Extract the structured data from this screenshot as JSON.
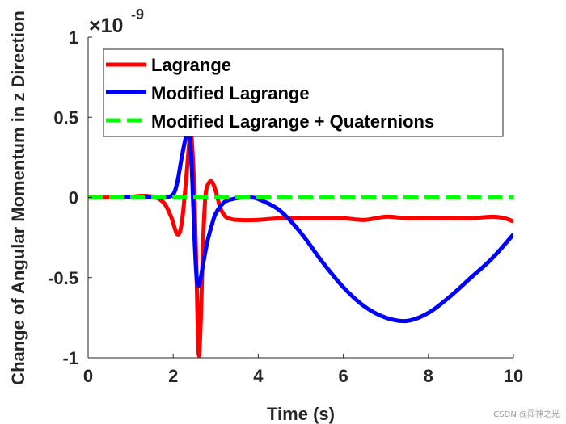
{
  "chart_data": {
    "type": "line",
    "title": "",
    "xlabel": "Time (s)",
    "ylabel": "Change of Angular Momentum in z Direction",
    "exponent_base": "×10",
    "exponent_power": "-9",
    "xlim": [
      0,
      10
    ],
    "ylim": [
      -1,
      1
    ],
    "xticks": [
      0,
      2,
      4,
      6,
      8,
      10
    ],
    "xtick_labels": [
      "0",
      "2",
      "4",
      "6",
      "8",
      "10"
    ],
    "yticks": [
      -1,
      -0.5,
      0,
      0.5,
      1
    ],
    "ytick_labels": [
      "-1",
      "-0.5",
      "0",
      "0.5",
      "1"
    ],
    "grid": false,
    "legend_position": "top",
    "series": [
      {
        "name": "Lagrange",
        "color": "#ff0000",
        "style": "solid",
        "x": [
          0,
          0.5,
          1.0,
          1.3,
          1.6,
          1.8,
          1.95,
          2.1,
          2.2,
          2.3,
          2.4,
          2.45,
          2.5,
          2.55,
          2.6,
          2.65,
          2.7,
          2.75,
          2.8,
          2.9,
          3.0,
          3.1,
          3.2,
          3.3,
          3.5,
          4.0,
          4.5,
          5.0,
          5.5,
          6.0,
          6.5,
          7.0,
          7.5,
          8.0,
          8.5,
          9.0,
          9.5,
          9.8,
          10.0
        ],
        "y": [
          0,
          0,
          0.005,
          0.01,
          0.0,
          -0.04,
          -0.12,
          -0.23,
          -0.16,
          0.1,
          0.4,
          0.3,
          0.0,
          -0.5,
          -0.98,
          -0.75,
          -0.3,
          -0.02,
          0.07,
          0.1,
          0.04,
          -0.06,
          -0.11,
          -0.13,
          -0.14,
          -0.14,
          -0.13,
          -0.13,
          -0.13,
          -0.13,
          -0.14,
          -0.12,
          -0.13,
          -0.13,
          -0.13,
          -0.13,
          -0.12,
          -0.13,
          -0.15
        ]
      },
      {
        "name": "Modified Lagrange",
        "color": "#0000ff",
        "style": "solid",
        "x": [
          0.5,
          1.0,
          1.5,
          1.8,
          2.0,
          2.1,
          2.2,
          2.3,
          2.35,
          2.4,
          2.45,
          2.5,
          2.55,
          2.6,
          2.65,
          2.7,
          2.8,
          2.9,
          3.0,
          3.2,
          3.4,
          3.6,
          3.8,
          4.0,
          4.5,
          5.0,
          5.5,
          6.0,
          6.5,
          7.0,
          7.5,
          8.0,
          8.5,
          9.0,
          9.5,
          10.0
        ],
        "y": [
          0,
          0,
          0,
          0.0,
          0.02,
          0.1,
          0.25,
          0.38,
          0.4,
          0.35,
          0.1,
          -0.25,
          -0.5,
          -0.55,
          -0.5,
          -0.42,
          -0.28,
          -0.18,
          -0.1,
          -0.03,
          -0.01,
          0.0,
          0.0,
          -0.01,
          -0.08,
          -0.22,
          -0.4,
          -0.56,
          -0.68,
          -0.75,
          -0.77,
          -0.72,
          -0.62,
          -0.5,
          -0.38,
          -0.23
        ]
      },
      {
        "name": "Modified Lagrange + Quaternions",
        "color": "#00ff00",
        "style": "dashed",
        "x": [
          0,
          10
        ],
        "y": [
          0,
          0
        ]
      }
    ]
  },
  "watermark": "CSDN @闯神之光"
}
